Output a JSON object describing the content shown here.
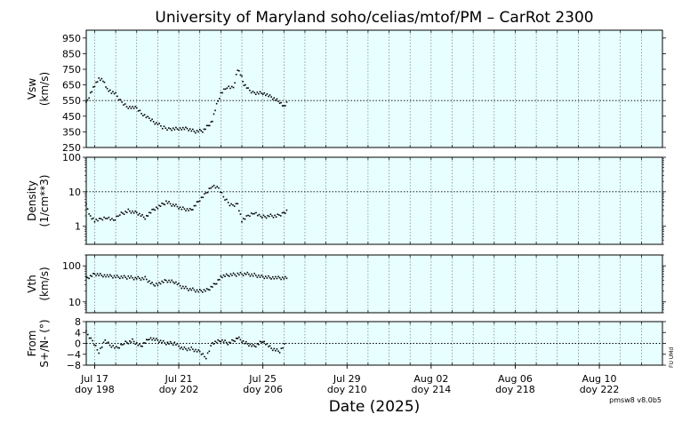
{
  "title": "University of Maryland  soho/celias/mtof/PM – CarRot 2300",
  "xlabel": "Date (2025)",
  "version": "pmsw8 v8.0b5",
  "side_note": "FU UMd",
  "colors": {
    "panel_bg": "#e8ffff",
    "marker": "#000000",
    "grid": "#666666"
  },
  "x_ticks": [
    {
      "day": 198,
      "date": "Jul 17",
      "doy": "doy 198"
    },
    {
      "day": 202,
      "date": "Jul 21",
      "doy": "doy 202"
    },
    {
      "day": 206,
      "date": "Jul 25",
      "doy": "doy 206"
    },
    {
      "day": 210,
      "date": "Jul 29",
      "doy": "doy 210"
    },
    {
      "day": 214,
      "date": "Aug 02",
      "doy": "doy 214"
    },
    {
      "day": 218,
      "date": "Aug 06",
      "doy": "doy 218"
    },
    {
      "day": 222,
      "date": "Aug 10",
      "doy": "doy 222"
    }
  ],
  "chart_data": [
    {
      "type": "scatter",
      "ylabel": [
        "Vsw",
        "(km/s)"
      ],
      "yscale": "linear",
      "xlim": [
        197.6,
        225.0
      ],
      "ylim": [
        250,
        1000
      ],
      "yticks": [
        "950",
        "850",
        "750",
        "650",
        "550",
        "450",
        "350",
        "250"
      ],
      "ytick_values": [
        950,
        850,
        750,
        650,
        550,
        450,
        350,
        250
      ],
      "reference_line": 550,
      "grid": "dotted vertical",
      "x_doy": [
        197.6,
        197.8,
        198.0,
        198.2,
        198.4,
        198.6,
        198.8,
        199.0,
        199.3,
        199.6,
        200.0,
        200.3,
        200.6,
        201.0,
        201.3,
        201.6,
        202.0,
        202.4,
        202.8,
        203.2,
        203.6,
        203.8,
        204.0,
        204.3,
        204.6,
        204.8,
        205.0,
        205.1,
        205.3,
        205.6,
        206.0,
        206.4,
        206.8,
        207.0,
        207.2
      ],
      "values": [
        530,
        600,
        650,
        690,
        680,
        620,
        600,
        590,
        540,
        510,
        500,
        460,
        430,
        400,
        375,
        370,
        372,
        368,
        350,
        360,
        420,
        520,
        600,
        640,
        630,
        750,
        700,
        650,
        620,
        600,
        600,
        570,
        540,
        510,
        540
      ]
    },
    {
      "type": "scatter",
      "ylabel": [
        "Density",
        "(1/cm**3)"
      ],
      "yscale": "log",
      "xlim": [
        197.6,
        225.0
      ],
      "ylim": [
        0.3,
        100
      ],
      "yticks": [
        "100",
        "10",
        "1"
      ],
      "ytick_values": [
        100,
        10,
        1
      ],
      "reference_line": 10,
      "grid": "dotted vertical",
      "x_doy": [
        197.6,
        197.8,
        198.0,
        198.3,
        198.6,
        198.9,
        199.2,
        199.6,
        200.0,
        200.4,
        200.8,
        201.0,
        201.4,
        201.8,
        202.2,
        202.6,
        203.0,
        203.3,
        203.6,
        203.9,
        204.2,
        204.5,
        204.8,
        205.0,
        205.3,
        205.6,
        205.9,
        206.3,
        206.7,
        207.0,
        207.2
      ],
      "values": [
        4,
        2,
        1.5,
        1.6,
        1.8,
        1.4,
        2.2,
        2.8,
        2.5,
        1.8,
        3.0,
        3.5,
        5.0,
        4.0,
        3.2,
        3.0,
        6.0,
        9.0,
        15.0,
        12.0,
        6.0,
        4.0,
        4.5,
        1.5,
        2.0,
        2.5,
        1.8,
        2.0,
        2.0,
        2.5,
        3.0
      ]
    },
    {
      "type": "scatter",
      "ylabel": [
        "Vth",
        "(km/s)"
      ],
      "yscale": "log",
      "xlim": [
        197.6,
        225.0
      ],
      "ylim": [
        5,
        200
      ],
      "yticks": [
        "100",
        "10"
      ],
      "ytick_values": [
        100,
        10
      ],
      "reference_line": null,
      "grid": "dotted vertical",
      "x_doy": [
        197.6,
        198.0,
        198.4,
        198.8,
        199.2,
        199.6,
        200.0,
        200.4,
        200.8,
        201.0,
        201.4,
        201.8,
        202.2,
        202.6,
        203.0,
        203.4,
        203.8,
        204.0,
        204.4,
        204.8,
        205.2,
        205.6,
        206.0,
        206.4,
        206.8,
        207.2
      ],
      "values": [
        45,
        60,
        55,
        50,
        48,
        48,
        45,
        45,
        30,
        32,
        38,
        35,
        25,
        22,
        20,
        22,
        35,
        50,
        55,
        58,
        60,
        55,
        50,
        48,
        45,
        45
      ]
    },
    {
      "type": "scatter",
      "ylabel": [
        "From",
        "S+/N- (°)"
      ],
      "yscale": "linear",
      "xlim": [
        197.6,
        225.0
      ],
      "ylim": [
        -8,
        8
      ],
      "yticks": [
        "8",
        "4",
        "0",
        "−4",
        "−8"
      ],
      "ytick_values": [
        8,
        4,
        0,
        -4,
        -8
      ],
      "reference_line": 0,
      "grid": "dotted vertical",
      "x_doy": [
        197.6,
        197.9,
        198.2,
        198.5,
        198.8,
        199.1,
        199.4,
        199.8,
        200.2,
        200.6,
        201.0,
        201.4,
        201.8,
        202.2,
        202.6,
        203.0,
        203.3,
        203.6,
        204.0,
        204.4,
        204.8,
        205.2,
        205.6,
        206.0,
        206.4,
        206.8,
        207.1
      ],
      "values": [
        4,
        1,
        -3,
        1,
        -1,
        -2,
        0,
        1,
        -1,
        2,
        1,
        0,
        0,
        -2,
        -2,
        -3,
        -5,
        0,
        1,
        0,
        2,
        0,
        -1,
        1,
        -2,
        -3,
        0
      ]
    }
  ]
}
